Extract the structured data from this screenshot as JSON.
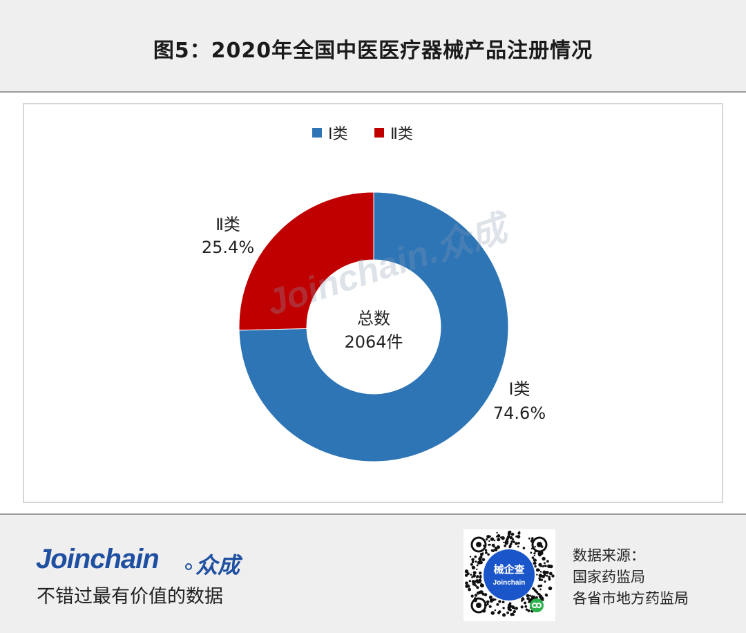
{
  "header": {
    "title": "图5：2020年全国中医医疗器械产品注册情况"
  },
  "chart_data": {
    "type": "pie",
    "donut": true,
    "title": "",
    "legend": {
      "placement": "top-center",
      "entries": [
        "Ⅰ类",
        "Ⅱ类"
      ]
    },
    "series": [
      {
        "name": "Ⅰ类",
        "value": 74.6,
        "label_name": "Ⅰ类",
        "label_value": "74.6%",
        "color": "#2e75b6"
      },
      {
        "name": "Ⅱ类",
        "value": 25.4,
        "label_name": "Ⅱ类",
        "label_value": "25.4%",
        "color": "#c00000"
      }
    ],
    "center_label": {
      "line1": "总数",
      "line2": "2064件"
    },
    "watermark": "Joinchain.众成"
  },
  "footer": {
    "brand": "Joinchain",
    "brand_cn": "众成",
    "slogan": "不错过最有价值的数据",
    "qr_label": "械企查",
    "qr_sub": "Joinchain",
    "source_label": "数据来源：",
    "sources": [
      "国家药监局",
      "各省市地方药监局"
    ]
  }
}
